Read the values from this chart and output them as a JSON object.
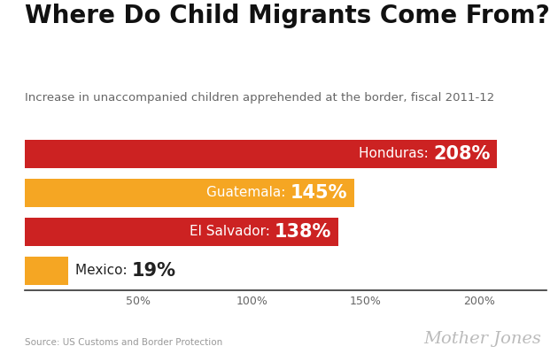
{
  "title": "Where Do Child Migrants Come From?",
  "subtitle": "Increase in unaccompanied children apprehended at the border, fiscal 2011-12",
  "categories": [
    "Honduras",
    "Guatemala",
    "El Salvador",
    "Mexico"
  ],
  "values": [
    208,
    145,
    138,
    19
  ],
  "bar_colors": [
    "#cc2222",
    "#f5a623",
    "#cc2222",
    "#f5a623"
  ],
  "label_names": [
    "Honduras: ",
    "Guatemala: ",
    "El Salvador: ",
    "Mexico: "
  ],
  "label_values": [
    "208%",
    "145%",
    "138%",
    "19%"
  ],
  "xlim": [
    0,
    230
  ],
  "xticks": [
    50,
    100,
    150,
    200
  ],
  "xtick_labels": [
    "50%",
    "100%",
    "150%",
    "200%"
  ],
  "source": "Source: US Customs and Border Protection",
  "branding": "Mother Jones",
  "background_color": "#ffffff",
  "title_fontsize": 20,
  "subtitle_fontsize": 9.5,
  "bar_height": 0.72,
  "label_name_fontsize": 11,
  "label_value_fontsize": 15
}
